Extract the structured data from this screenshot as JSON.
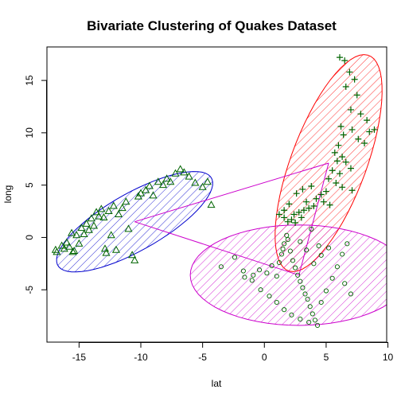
{
  "chart_data": {
    "type": "scatter",
    "title": "Bivariate Clustering of Quakes Dataset",
    "xlabel": "lat",
    "ylabel": "long",
    "xlim": [
      -17.6,
      9.9
    ],
    "ylim": [
      -10.0,
      18.2
    ],
    "xticks": [
      -15,
      -10,
      -5,
      0,
      5,
      10
    ],
    "yticks": [
      -5,
      0,
      5,
      10,
      15
    ],
    "grid": false,
    "legend": "none",
    "point_color": "#006400",
    "clusters": [
      {
        "marker": "triangle",
        "ellipse": {
          "center": [
            -10.5,
            1.5
          ],
          "rx": 7.5,
          "ry": 2.6,
          "angle_deg": 35,
          "color": "#0000CD"
        },
        "points": [
          [
            -16.8,
            -1.4
          ],
          [
            -16.4,
            -0.8
          ],
          [
            -16.2,
            -1.1
          ],
          [
            -16.0,
            -0.5
          ],
          [
            -15.8,
            -0.9
          ],
          [
            -15.6,
            0.4
          ],
          [
            -15.4,
            -1.3
          ],
          [
            -15.2,
            0.2
          ],
          [
            -15.0,
            -0.6
          ],
          [
            -14.8,
            0.9
          ],
          [
            -14.6,
            0.3
          ],
          [
            -14.4,
            1.3
          ],
          [
            -14.2,
            0.7
          ],
          [
            -14.0,
            1.8
          ],
          [
            -13.8,
            1.1
          ],
          [
            -13.6,
            2.4
          ],
          [
            -13.4,
            2.0
          ],
          [
            -13.2,
            2.7
          ],
          [
            -13.0,
            1.9
          ],
          [
            -12.8,
            -1.5
          ],
          [
            -12.6,
            2.5
          ],
          [
            -12.4,
            0.2
          ],
          [
            -12.2,
            3.0
          ],
          [
            -12.0,
            -1.2
          ],
          [
            -11.8,
            2.2
          ],
          [
            -11.5,
            2.8
          ],
          [
            -11.2,
            3.4
          ],
          [
            -11.0,
            0.8
          ],
          [
            -10.7,
            -1.7
          ],
          [
            -10.5,
            -2.2
          ],
          [
            -10.2,
            3.9
          ],
          [
            -10.0,
            4.2
          ],
          [
            -9.6,
            4.5
          ],
          [
            -9.3,
            4.9
          ],
          [
            -9.0,
            4.0
          ],
          [
            -8.6,
            5.3
          ],
          [
            -8.2,
            5.0
          ],
          [
            -7.9,
            5.6
          ],
          [
            -7.6,
            5.3
          ],
          [
            -7.2,
            6.1
          ],
          [
            -6.8,
            6.5
          ],
          [
            -6.5,
            6.2
          ],
          [
            -6.1,
            5.8
          ],
          [
            -5.6,
            5.2
          ],
          [
            -5.0,
            4.8
          ],
          [
            -4.6,
            5.3
          ],
          [
            -4.3,
            3.1
          ],
          [
            -12.9,
            -1.1
          ],
          [
            -15.5,
            -1.4
          ],
          [
            -16.9,
            -1.2
          ]
        ]
      },
      {
        "marker": "plus",
        "ellipse": {
          "center": [
            5.2,
            7.1
          ],
          "rx": 10.8,
          "ry": 3.1,
          "angle_deg": 73,
          "color": "#FF0000"
        },
        "points": [
          [
            6.1,
            17.2
          ],
          [
            6.5,
            16.9
          ],
          [
            6.9,
            15.8
          ],
          [
            7.3,
            15.1
          ],
          [
            6.6,
            14.4
          ],
          [
            7.5,
            13.6
          ],
          [
            7.0,
            12.2
          ],
          [
            7.8,
            11.8
          ],
          [
            8.3,
            11.2
          ],
          [
            6.2,
            10.6
          ],
          [
            7.1,
            10.3
          ],
          [
            8.5,
            10.1
          ],
          [
            8.9,
            10.3
          ],
          [
            6.4,
            9.8
          ],
          [
            7.6,
            9.4
          ],
          [
            8.1,
            9.0
          ],
          [
            6.0,
            8.8
          ],
          [
            5.7,
            8.1
          ],
          [
            6.3,
            7.7
          ],
          [
            5.9,
            7.3
          ],
          [
            6.6,
            7.2
          ],
          [
            7.0,
            6.6
          ],
          [
            5.5,
            6.4
          ],
          [
            6.1,
            6.1
          ],
          [
            5.2,
            5.6
          ],
          [
            5.8,
            5.2
          ],
          [
            6.3,
            4.8
          ],
          [
            7.1,
            4.5
          ],
          [
            5.0,
            4.4
          ],
          [
            4.6,
            4.1
          ],
          [
            4.2,
            3.7
          ],
          [
            4.8,
            3.4
          ],
          [
            5.3,
            3.1
          ],
          [
            4.0,
            3.0
          ],
          [
            3.6,
            2.8
          ],
          [
            3.2,
            2.6
          ],
          [
            2.8,
            2.4
          ],
          [
            2.4,
            2.2
          ],
          [
            2.2,
            1.7
          ],
          [
            1.9,
            1.5
          ],
          [
            1.6,
            1.9
          ],
          [
            2.5,
            1.4
          ],
          [
            3.0,
            1.9
          ],
          [
            3.4,
            3.4
          ],
          [
            2.0,
            3.2
          ],
          [
            1.6,
            2.6
          ],
          [
            1.2,
            2.2
          ],
          [
            2.6,
            4.2
          ],
          [
            3.1,
            4.6
          ],
          [
            3.8,
            4.9
          ]
        ]
      },
      {
        "marker": "circle",
        "ellipse": {
          "center": [
            2.8,
            -3.6
          ],
          "rx": 8.8,
          "ry": 4.8,
          "angle_deg": 0,
          "color": "#CC00CC"
        },
        "points": [
          [
            -3.5,
            -2.8
          ],
          [
            -2.4,
            -1.9
          ],
          [
            -1.7,
            -3.2
          ],
          [
            -0.9,
            -3.6
          ],
          [
            -0.4,
            -3.1
          ],
          [
            0.2,
            -3.4
          ],
          [
            0.6,
            -2.7
          ],
          [
            1.0,
            -3.7
          ],
          [
            1.2,
            -2.4
          ],
          [
            1.4,
            -1.6
          ],
          [
            1.5,
            -1.1
          ],
          [
            1.6,
            -0.6
          ],
          [
            1.8,
            0.2
          ],
          [
            1.9,
            -0.2
          ],
          [
            2.1,
            -1.3
          ],
          [
            2.3,
            -2.2
          ],
          [
            2.5,
            -2.9
          ],
          [
            2.7,
            -3.6
          ],
          [
            2.9,
            -4.2
          ],
          [
            3.1,
            -4.8
          ],
          [
            3.3,
            -5.4
          ],
          [
            3.5,
            -5.9
          ],
          [
            3.7,
            -6.6
          ],
          [
            3.9,
            -7.3
          ],
          [
            4.1,
            -7.9
          ],
          [
            4.3,
            -8.4
          ],
          [
            3.6,
            -8.1
          ],
          [
            2.9,
            -7.8
          ],
          [
            2.2,
            -7.4
          ],
          [
            1.6,
            -6.9
          ],
          [
            1.0,
            -6.2
          ],
          [
            0.4,
            -5.6
          ],
          [
            -0.3,
            -5.0
          ],
          [
            -1.0,
            -4.1
          ],
          [
            -1.6,
            -3.8
          ],
          [
            4.6,
            -6.2
          ],
          [
            5.0,
            -5.1
          ],
          [
            5.5,
            -3.9
          ],
          [
            5.9,
            -2.8
          ],
          [
            6.3,
            -1.6
          ],
          [
            6.7,
            -0.6
          ],
          [
            5.2,
            -1.0
          ],
          [
            4.6,
            -1.7
          ],
          [
            4.0,
            -2.5
          ],
          [
            3.4,
            -1.2
          ],
          [
            2.9,
            -0.4
          ],
          [
            3.8,
            0.8
          ],
          [
            4.4,
            -0.8
          ],
          [
            6.5,
            -4.4
          ],
          [
            7.0,
            -5.4
          ]
        ]
      }
    ]
  }
}
